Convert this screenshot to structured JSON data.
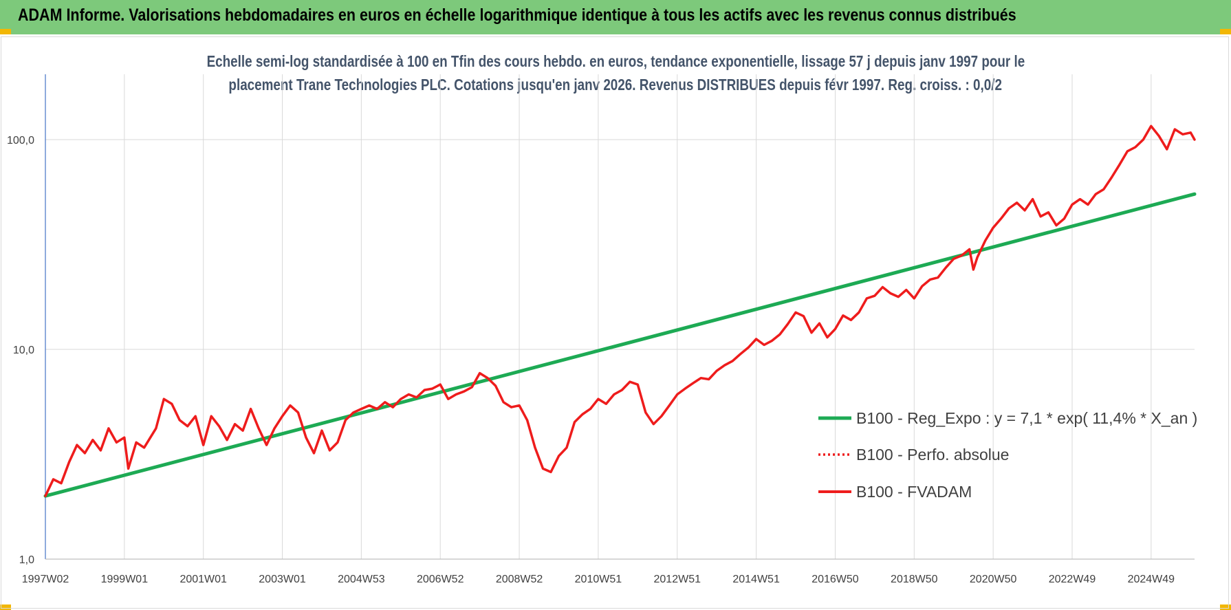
{
  "header": {
    "title": "ADAM Informe. Valorisations hebdomadaires en euros en échelle logarithmique identique à tous les actifs avec les revenus connus distribués"
  },
  "colors": {
    "banner": "#7dc97b",
    "corner": "#f2b705",
    "trend": "#1daa54",
    "fvadam": "#ee1c1c",
    "perfo": "#ee1c1c",
    "grid": "#d9d9d9",
    "subtitle": "#44546a"
  },
  "chart_data": {
    "type": "line",
    "title_line1": "Echelle semi-log standardisée à 100 en Tfin des cours hebdo. en euros, tendance exponentielle, lissage 57 j depuis janv 1997 pour le",
    "title_line2": "placement Trane Technologies PLC. Cotations jusqu'en janv 2026. Revenus DISTRIBUES depuis févr 1997. Reg. croiss. : 0,0/2",
    "xlabel": "",
    "ylabel": "",
    "y_scale": "log",
    "ylim": [
      1,
      200
    ],
    "y_ticks": [
      {
        "value": 1,
        "label": "1,0"
      },
      {
        "value": 10,
        "label": "10,0"
      },
      {
        "value": 100,
        "label": "100,0"
      }
    ],
    "x_range": [
      1997.0,
      2026.1
    ],
    "x_ticks": [
      {
        "value": 1997.0,
        "label": "1997W02"
      },
      {
        "value": 1999.0,
        "label": "1999W01"
      },
      {
        "value": 2001.0,
        "label": "2001W01"
      },
      {
        "value": 2003.0,
        "label": "2003W01"
      },
      {
        "value": 2005.0,
        "label": "2004W53"
      },
      {
        "value": 2007.0,
        "label": "2006W52"
      },
      {
        "value": 2009.0,
        "label": "2008W52"
      },
      {
        "value": 2011.0,
        "label": "2010W51"
      },
      {
        "value": 2013.0,
        "label": "2012W51"
      },
      {
        "value": 2015.0,
        "label": "2014W51"
      },
      {
        "value": 2017.0,
        "label": "2016W50"
      },
      {
        "value": 2019.0,
        "label": "2018W50"
      },
      {
        "value": 2021.0,
        "label": "2020W50"
      },
      {
        "value": 2023.0,
        "label": "2022W49"
      },
      {
        "value": 2025.0,
        "label": "2024W49"
      }
    ],
    "grid": true,
    "legend_position": "bottom-right",
    "series": [
      {
        "name": "B100 - Reg_Expo : y = 7,1 * exp( 11,4% *  X_an )",
        "style": "solid-thick",
        "color": "#1daa54",
        "points": [
          [
            1997.0,
            2.0
          ],
          [
            2026.1,
            55.0
          ]
        ]
      },
      {
        "name": "B100 - Perfo. absolue",
        "style": "dotted",
        "color": "#ee1c1c",
        "points": []
      },
      {
        "name": "B100 - FVADAM",
        "style": "solid",
        "color": "#ee1c1c",
        "points": [
          [
            1997.0,
            2.0
          ],
          [
            1997.2,
            2.4
          ],
          [
            1997.4,
            2.3
          ],
          [
            1997.6,
            2.9
          ],
          [
            1997.8,
            3.5
          ],
          [
            1998.0,
            3.2
          ],
          [
            1998.2,
            3.7
          ],
          [
            1998.4,
            3.3
          ],
          [
            1998.6,
            4.2
          ],
          [
            1998.8,
            3.6
          ],
          [
            1999.0,
            3.8
          ],
          [
            1999.1,
            2.7
          ],
          [
            1999.3,
            3.6
          ],
          [
            1999.5,
            3.4
          ],
          [
            1999.8,
            4.2
          ],
          [
            2000.0,
            5.8
          ],
          [
            2000.2,
            5.5
          ],
          [
            2000.4,
            4.6
          ],
          [
            2000.6,
            4.3
          ],
          [
            2000.8,
            4.8
          ],
          [
            2001.0,
            3.5
          ],
          [
            2001.2,
            4.8
          ],
          [
            2001.4,
            4.3
          ],
          [
            2001.6,
            3.7
          ],
          [
            2001.8,
            4.4
          ],
          [
            2002.0,
            4.1
          ],
          [
            2002.2,
            5.2
          ],
          [
            2002.4,
            4.2
          ],
          [
            2002.6,
            3.5
          ],
          [
            2002.8,
            4.2
          ],
          [
            2003.0,
            4.8
          ],
          [
            2003.2,
            5.4
          ],
          [
            2003.4,
            5.0
          ],
          [
            2003.6,
            3.8
          ],
          [
            2003.8,
            3.2
          ],
          [
            2004.0,
            4.1
          ],
          [
            2004.2,
            3.3
          ],
          [
            2004.4,
            3.6
          ],
          [
            2004.6,
            4.6
          ],
          [
            2004.8,
            5.0
          ],
          [
            2005.0,
            5.2
          ],
          [
            2005.2,
            5.4
          ],
          [
            2005.4,
            5.2
          ],
          [
            2005.6,
            5.6
          ],
          [
            2005.8,
            5.3
          ],
          [
            2006.0,
            5.8
          ],
          [
            2006.2,
            6.1
          ],
          [
            2006.4,
            5.9
          ],
          [
            2006.6,
            6.4
          ],
          [
            2006.8,
            6.5
          ],
          [
            2007.0,
            6.8
          ],
          [
            2007.2,
            5.8
          ],
          [
            2007.4,
            6.1
          ],
          [
            2007.6,
            6.3
          ],
          [
            2007.8,
            6.6
          ],
          [
            2008.0,
            7.7
          ],
          [
            2008.2,
            7.3
          ],
          [
            2008.4,
            6.7
          ],
          [
            2008.6,
            5.6
          ],
          [
            2008.8,
            5.3
          ],
          [
            2009.0,
            5.4
          ],
          [
            2009.2,
            4.6
          ],
          [
            2009.4,
            3.4
          ],
          [
            2009.6,
            2.7
          ],
          [
            2009.8,
            2.6
          ],
          [
            2010.0,
            3.1
          ],
          [
            2010.2,
            3.4
          ],
          [
            2010.4,
            4.5
          ],
          [
            2010.6,
            4.9
          ],
          [
            2010.8,
            5.2
          ],
          [
            2011.0,
            5.8
          ],
          [
            2011.2,
            5.5
          ],
          [
            2011.4,
            6.1
          ],
          [
            2011.6,
            6.4
          ],
          [
            2011.8,
            7.0
          ],
          [
            2012.0,
            6.8
          ],
          [
            2012.2,
            5.0
          ],
          [
            2012.4,
            4.4
          ],
          [
            2012.6,
            4.8
          ],
          [
            2012.8,
            5.4
          ],
          [
            2013.0,
            6.1
          ],
          [
            2013.2,
            6.5
          ],
          [
            2013.4,
            6.9
          ],
          [
            2013.6,
            7.3
          ],
          [
            2013.8,
            7.2
          ],
          [
            2014.0,
            7.9
          ],
          [
            2014.2,
            8.4
          ],
          [
            2014.4,
            8.8
          ],
          [
            2014.6,
            9.5
          ],
          [
            2014.8,
            10.2
          ],
          [
            2015.0,
            11.2
          ],
          [
            2015.2,
            10.5
          ],
          [
            2015.4,
            11.0
          ],
          [
            2015.6,
            11.8
          ],
          [
            2015.8,
            13.2
          ],
          [
            2016.0,
            15.0
          ],
          [
            2016.2,
            14.4
          ],
          [
            2016.4,
            12.0
          ],
          [
            2016.6,
            13.3
          ],
          [
            2016.8,
            11.4
          ],
          [
            2017.0,
            12.5
          ],
          [
            2017.2,
            14.5
          ],
          [
            2017.4,
            13.8
          ],
          [
            2017.6,
            15.0
          ],
          [
            2017.8,
            17.5
          ],
          [
            2018.0,
            18.0
          ],
          [
            2018.2,
            19.8
          ],
          [
            2018.4,
            18.5
          ],
          [
            2018.6,
            17.8
          ],
          [
            2018.8,
            19.2
          ],
          [
            2019.0,
            17.5
          ],
          [
            2019.2,
            20.0
          ],
          [
            2019.4,
            21.5
          ],
          [
            2019.6,
            22.0
          ],
          [
            2019.8,
            24.5
          ],
          [
            2020.0,
            27.0
          ],
          [
            2020.2,
            28.0
          ],
          [
            2020.4,
            30.0
          ],
          [
            2020.5,
            24.0
          ],
          [
            2020.6,
            27.5
          ],
          [
            2020.8,
            33.0
          ],
          [
            2021.0,
            38.0
          ],
          [
            2021.2,
            42.0
          ],
          [
            2021.4,
            47.0
          ],
          [
            2021.6,
            50.0
          ],
          [
            2021.8,
            46.0
          ],
          [
            2022.0,
            52.0
          ],
          [
            2022.2,
            43.0
          ],
          [
            2022.4,
            45.0
          ],
          [
            2022.6,
            39.0
          ],
          [
            2022.8,
            42.0
          ],
          [
            2023.0,
            49.0
          ],
          [
            2023.2,
            52.0
          ],
          [
            2023.4,
            49.0
          ],
          [
            2023.6,
            55.0
          ],
          [
            2023.8,
            58.0
          ],
          [
            2024.0,
            66.0
          ],
          [
            2024.2,
            76.0
          ],
          [
            2024.4,
            88.0
          ],
          [
            2024.6,
            92.0
          ],
          [
            2024.8,
            100.0
          ],
          [
            2025.0,
            116.0
          ],
          [
            2025.2,
            104.0
          ],
          [
            2025.4,
            90.0
          ],
          [
            2025.6,
            112.0
          ],
          [
            2025.8,
            106.0
          ],
          [
            2026.0,
            108.0
          ],
          [
            2026.1,
            100.0
          ]
        ]
      }
    ]
  }
}
